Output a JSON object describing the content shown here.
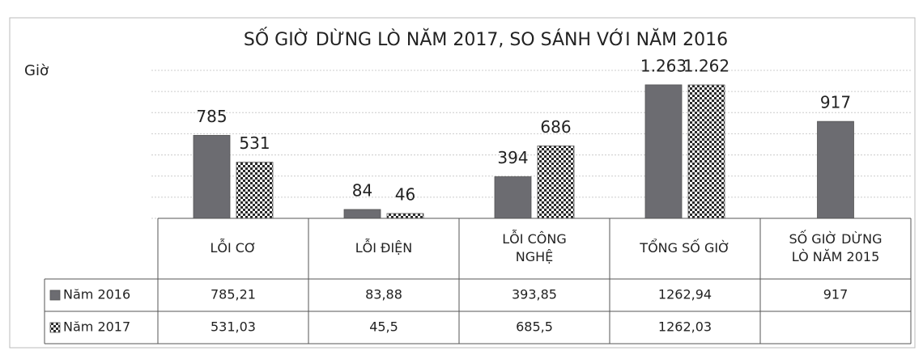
{
  "chart_data": {
    "type": "bar",
    "title": "SỐ GIỜ DỪNG LÒ NĂM 2017, SO SÁNH VỚI NĂM 2016",
    "y_label": "Giờ",
    "categories": [
      [
        "LỖI CƠ"
      ],
      [
        "LỖI ĐIỆN"
      ],
      [
        "LỖI CÔNG",
        "NGHỆ"
      ],
      [
        "TỔNG SỐ GIỜ"
      ],
      [
        "SỐ GIỜ DỪNG",
        "LÒ NĂM 2015"
      ]
    ],
    "series": [
      {
        "name": "Năm 2016",
        "color": "#6c6c71",
        "pattern": "solid",
        "values": [
          785.21,
          83.88,
          393.85,
          1262.94,
          917
        ],
        "value_labels": [
          "785",
          "84",
          "394",
          "1.263",
          "917"
        ],
        "table_labels": [
          "785,21",
          "83,88",
          "393,85",
          "1262,94",
          "917"
        ]
      },
      {
        "name": "Năm 2017",
        "color": "#2a2a2a",
        "pattern": "checker",
        "values": [
          531.03,
          45.5,
          685.5,
          1262.03,
          null
        ],
        "value_labels": [
          "531",
          "46",
          "686",
          "1.262",
          null
        ],
        "table_labels": [
          "531,03",
          "45,5",
          "685,5",
          "1262,03",
          null
        ]
      }
    ],
    "ylim": [
      0,
      1400
    ],
    "yticks": [
      0,
      200,
      400,
      600,
      800,
      1000,
      1200,
      1400
    ],
    "grid": true
  }
}
